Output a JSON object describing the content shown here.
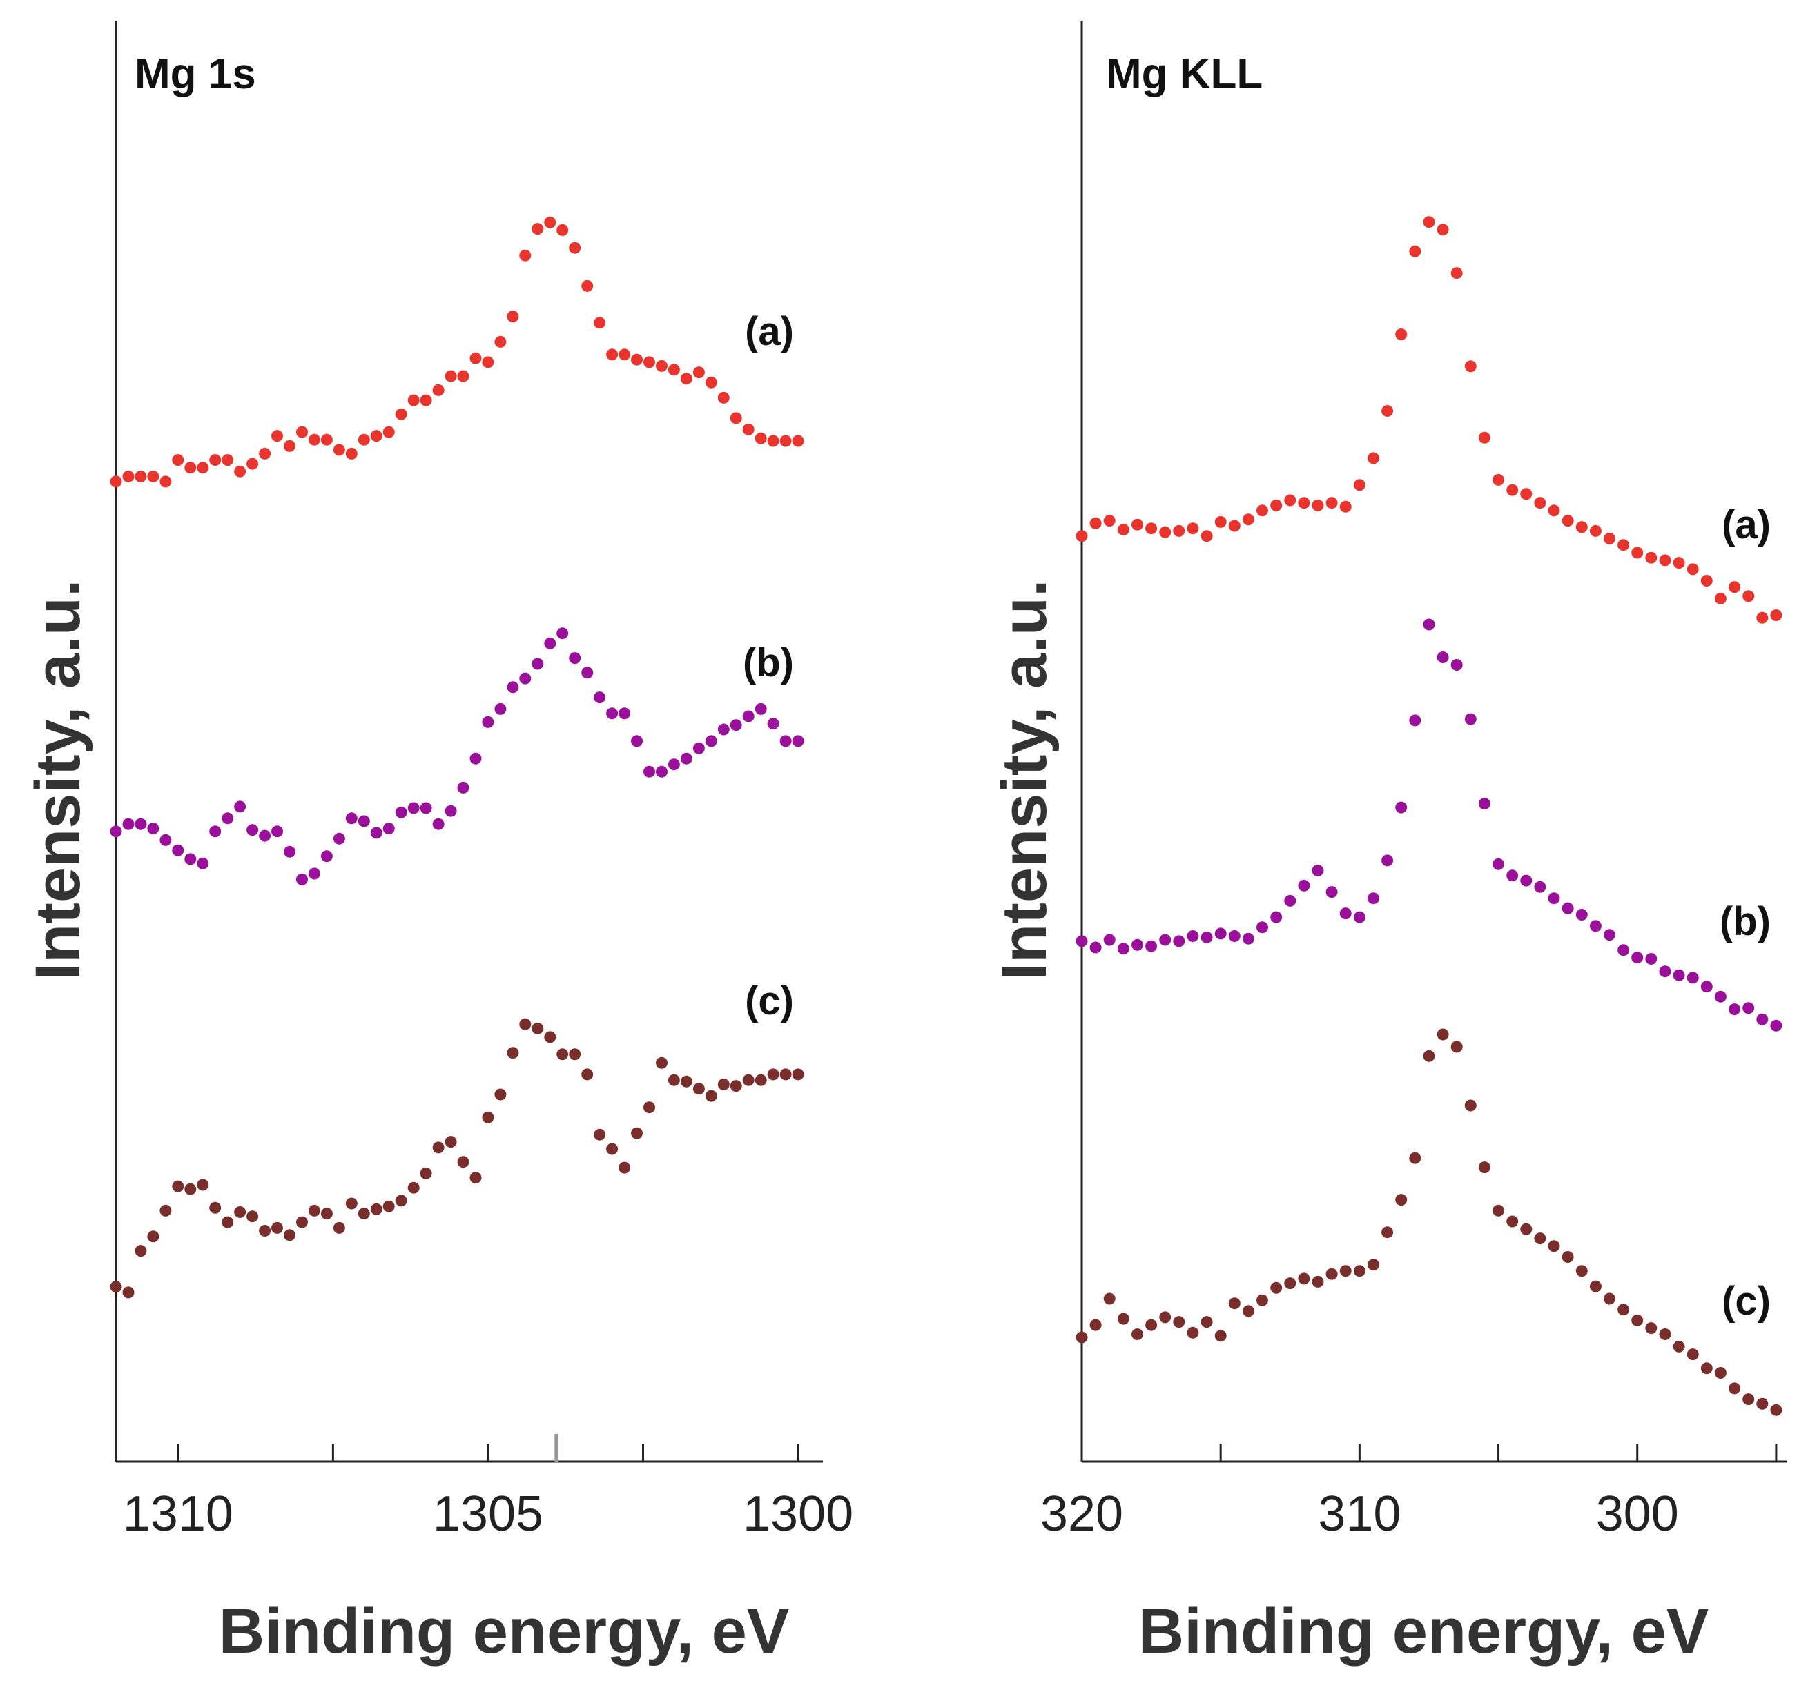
{
  "chart_data": [
    {
      "type": "scatter",
      "panel": "left",
      "title": "Mg 1s",
      "xlabel": "Binding energy, eV",
      "ylabel": "Intensity, a.u.",
      "xlim": [
        1311,
        1299.6
      ],
      "x_reversed": true,
      "ylim": [
        0,
        10
      ],
      "y_ticks_shown": false,
      "xticks": [
        1310,
        1305,
        1300
      ],
      "peak_marker_x": 1303.9,
      "series": [
        {
          "name": "(a)",
          "color": "#e8342c",
          "x": [
            1311.0,
            1310.8,
            1310.6,
            1310.4,
            1310.2,
            1310.0,
            1309.8,
            1309.6,
            1309.4,
            1309.2,
            1309.0,
            1308.8,
            1308.6,
            1308.4,
            1308.2,
            1308.0,
            1307.8,
            1307.6,
            1307.4,
            1307.2,
            1307.0,
            1306.8,
            1306.6,
            1306.4,
            1306.2,
            1306.0,
            1305.8,
            1305.6,
            1305.4,
            1305.2,
            1305.0,
            1304.8,
            1304.6,
            1304.4,
            1304.2,
            1304.0,
            1303.8,
            1303.6,
            1303.4,
            1303.2,
            1303.0,
            1302.8,
            1302.6,
            1302.4,
            1302.2,
            1302.0,
            1301.8,
            1301.6,
            1301.4,
            1301.2,
            1301.0,
            1300.8,
            1300.6,
            1300.4,
            1300.2,
            1300.0
          ],
          "y": [
            6.52,
            6.56,
            6.56,
            6.56,
            6.52,
            6.69,
            6.63,
            6.63,
            6.69,
            6.69,
            6.6,
            6.66,
            6.74,
            6.88,
            6.8,
            6.91,
            6.85,
            6.85,
            6.77,
            6.74,
            6.85,
            6.88,
            6.91,
            7.05,
            7.16,
            7.16,
            7.24,
            7.35,
            7.35,
            7.49,
            7.46,
            7.62,
            7.82,
            8.3,
            8.51,
            8.56,
            8.5,
            8.36,
            8.06,
            7.77,
            7.52,
            7.52,
            7.48,
            7.46,
            7.43,
            7.4,
            7.33,
            7.38,
            7.3,
            7.18,
            7.02,
            6.93,
            6.86,
            6.84,
            6.84,
            6.84
          ]
        },
        {
          "name": "(b)",
          "color": "#9b109b",
          "x": [
            1311.0,
            1310.8,
            1310.6,
            1310.4,
            1310.2,
            1310.0,
            1309.8,
            1309.6,
            1309.4,
            1309.2,
            1309.0,
            1308.8,
            1308.6,
            1308.4,
            1308.2,
            1308.0,
            1307.8,
            1307.6,
            1307.4,
            1307.2,
            1307.0,
            1306.8,
            1306.6,
            1306.4,
            1306.2,
            1306.0,
            1305.8,
            1305.6,
            1305.4,
            1305.2,
            1305.0,
            1304.8,
            1304.6,
            1304.4,
            1304.2,
            1304.0,
            1303.8,
            1303.6,
            1303.4,
            1303.2,
            1303.0,
            1302.8,
            1302.6,
            1302.4,
            1302.2,
            1302.0,
            1301.8,
            1301.6,
            1301.4,
            1301.2,
            1301.0,
            1300.8,
            1300.6,
            1300.4,
            1300.2,
            1300.0
          ],
          "y": [
            4.28,
            4.33,
            4.33,
            4.3,
            4.22,
            4.15,
            4.09,
            4.06,
            4.28,
            4.37,
            4.45,
            4.29,
            4.25,
            4.28,
            4.14,
            3.95,
            3.99,
            4.11,
            4.23,
            4.37,
            4.35,
            4.27,
            4.3,
            4.41,
            4.44,
            4.44,
            4.33,
            4.42,
            4.58,
            4.78,
            5.03,
            5.12,
            5.27,
            5.33,
            5.43,
            5.57,
            5.64,
            5.47,
            5.37,
            5.2,
            5.09,
            5.09,
            4.9,
            4.69,
            4.69,
            4.74,
            4.78,
            4.85,
            4.9,
            4.98,
            5.01,
            5.07,
            5.12,
            5.02,
            4.9,
            4.9
          ]
        },
        {
          "name": "(c)",
          "color": "#7a2e2c",
          "x": [
            1311.0,
            1310.8,
            1310.6,
            1310.4,
            1310.2,
            1310.0,
            1309.8,
            1309.6,
            1309.4,
            1309.2,
            1309.0,
            1308.8,
            1308.6,
            1308.4,
            1308.2,
            1308.0,
            1307.8,
            1307.6,
            1307.4,
            1307.2,
            1307.0,
            1306.8,
            1306.6,
            1306.4,
            1306.2,
            1306.0,
            1305.8,
            1305.6,
            1305.4,
            1305.2,
            1305.0,
            1304.8,
            1304.6,
            1304.4,
            1304.2,
            1304.0,
            1303.8,
            1303.6,
            1303.4,
            1303.2,
            1303.0,
            1302.8,
            1302.6,
            1302.4,
            1302.2,
            1302.0,
            1301.8,
            1301.6,
            1301.4,
            1301.2,
            1301.0,
            1300.8,
            1300.6,
            1300.4,
            1300.2,
            1300.0
          ],
          "y": [
            1.15,
            1.11,
            1.4,
            1.5,
            1.68,
            1.85,
            1.83,
            1.86,
            1.7,
            1.6,
            1.67,
            1.64,
            1.54,
            1.56,
            1.51,
            1.6,
            1.68,
            1.66,
            1.56,
            1.73,
            1.66,
            1.69,
            1.71,
            1.75,
            1.84,
            1.94,
            2.12,
            2.16,
            2.02,
            1.91,
            2.33,
            2.49,
            2.78,
            2.98,
            2.95,
            2.89,
            2.77,
            2.77,
            2.63,
            2.21,
            2.11,
            1.98,
            2.22,
            2.4,
            2.71,
            2.59,
            2.58,
            2.53,
            2.48,
            2.56,
            2.55,
            2.59,
            2.59,
            2.63,
            2.63,
            2.63
          ]
        }
      ],
      "series_labels": [
        "(a)",
        "(b)",
        "(c)"
      ]
    },
    {
      "type": "scatter",
      "panel": "right",
      "title": "Mg KLL",
      "xlabel": "Binding energy, eV",
      "ylabel": "Intensity, a.u.",
      "xlim": [
        320,
        294.6
      ],
      "x_reversed": true,
      "ylim": [
        0,
        10
      ],
      "y_ticks_shown": false,
      "xticks": [
        320,
        310,
        300
      ],
      "series": [
        {
          "name": "(a)",
          "color": "#e8342c",
          "x": [
            320,
            319.5,
            319,
            318.5,
            318,
            317.5,
            317,
            316.5,
            316,
            315.5,
            315,
            314.5,
            314,
            313.5,
            313,
            312.5,
            312,
            311.5,
            311,
            310.5,
            310,
            309.5,
            309,
            308.5,
            308,
            307.5,
            307,
            306.5,
            306,
            305.5,
            305,
            304.5,
            304,
            303.5,
            303,
            302.5,
            302,
            301.5,
            301,
            300.5,
            300,
            299.5,
            299,
            298.5,
            298,
            297.5,
            297,
            296.5,
            296,
            295.5,
            295
          ],
          "y": [
            6.22,
            6.32,
            6.34,
            6.27,
            6.31,
            6.28,
            6.25,
            6.26,
            6.28,
            6.22,
            6.33,
            6.3,
            6.35,
            6.42,
            6.46,
            6.5,
            6.48,
            6.46,
            6.48,
            6.45,
            6.62,
            6.83,
            7.2,
            7.8,
            8.45,
            8.68,
            8.62,
            8.28,
            7.55,
            6.99,
            6.66,
            6.58,
            6.55,
            6.48,
            6.42,
            6.34,
            6.29,
            6.26,
            6.2,
            6.15,
            6.09,
            6.05,
            6.03,
            6.01,
            5.96,
            5.87,
            5.73,
            5.82,
            5.75,
            5.58,
            5.6
          ]
        },
        {
          "name": "(b)",
          "color": "#9b109b",
          "x": [
            320,
            319.5,
            319,
            318.5,
            318,
            317.5,
            317,
            316.5,
            316,
            315.5,
            315,
            314.5,
            314,
            313.5,
            313,
            312.5,
            312,
            311.5,
            311,
            310.5,
            310,
            309.5,
            309,
            308.5,
            308,
            307.5,
            307,
            306.5,
            306,
            305.5,
            305,
            304.5,
            304,
            303.5,
            303,
            302.5,
            302,
            301.5,
            301,
            300.5,
            300,
            299.5,
            299,
            298.5,
            298,
            297.5,
            297,
            296.5,
            296,
            295.5,
            295
          ],
          "y": [
            3.59,
            3.54,
            3.6,
            3.53,
            3.56,
            3.55,
            3.6,
            3.59,
            3.63,
            3.62,
            3.65,
            3.63,
            3.61,
            3.7,
            3.78,
            3.91,
            4.03,
            4.15,
            3.98,
            3.81,
            3.78,
            3.93,
            4.23,
            4.65,
            5.34,
            6.1,
            5.84,
            5.78,
            5.35,
            4.68,
            4.2,
            4.11,
            4.07,
            4.02,
            3.93,
            3.85,
            3.8,
            3.71,
            3.64,
            3.52,
            3.46,
            3.45,
            3.35,
            3.32,
            3.3,
            3.23,
            3.15,
            3.05,
            3.06,
            2.97,
            2.92
          ]
        },
        {
          "name": "(c)",
          "color": "#7a2e2c",
          "x": [
            320,
            319.5,
            319,
            318.5,
            318,
            317.5,
            317,
            316.5,
            316,
            315.5,
            315,
            314.5,
            314,
            313.5,
            313,
            312.5,
            312,
            311.5,
            311,
            310.5,
            310,
            309.5,
            309,
            308.5,
            308,
            307.5,
            307,
            306.5,
            306,
            305.5,
            305,
            304.5,
            304,
            303.5,
            303,
            302.5,
            302,
            301.5,
            301,
            300.5,
            300,
            299.5,
            299,
            298.5,
            298,
            297.5,
            297,
            296.5,
            296,
            295.5,
            295
          ],
          "y": [
            0.85,
            0.93,
            1.1,
            0.97,
            0.87,
            0.93,
            0.98,
            0.95,
            0.88,
            0.95,
            0.86,
            1.07,
            1.02,
            1.09,
            1.17,
            1.2,
            1.23,
            1.21,
            1.26,
            1.28,
            1.28,
            1.32,
            1.53,
            1.74,
            2.01,
            2.67,
            2.81,
            2.73,
            2.35,
            1.95,
            1.67,
            1.6,
            1.55,
            1.49,
            1.44,
            1.37,
            1.28,
            1.18,
            1.1,
            1.03,
            0.96,
            0.91,
            0.87,
            0.79,
            0.74,
            0.65,
            0.62,
            0.52,
            0.45,
            0.42,
            0.38
          ]
        }
      ],
      "series_labels": [
        "(a)",
        "(b)",
        "(c)"
      ]
    }
  ]
}
